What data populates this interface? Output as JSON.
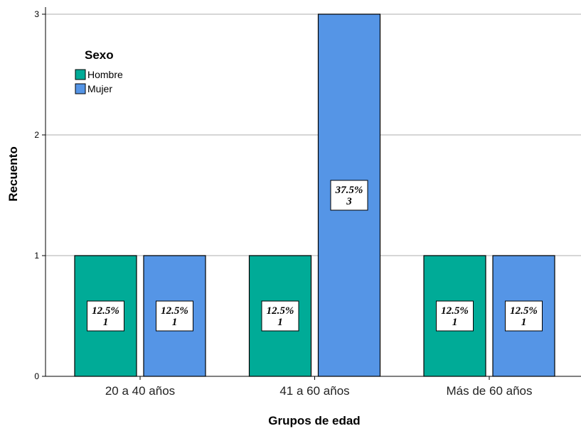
{
  "chart_data": {
    "type": "bar",
    "xlabel": "Grupos de edad",
    "ylabel": "Recuento",
    "categories": [
      "20 a 40 años",
      "41 a 60 años",
      "Más de 60 años"
    ],
    "ylim": [
      0,
      3
    ],
    "yticks": [
      "0",
      "1",
      "2",
      "3"
    ],
    "grid": true,
    "legend": {
      "title": "Sexo",
      "placement": "top-left"
    },
    "series": [
      {
        "name": "Hombre",
        "color": "#00ab97",
        "values": [
          1,
          1,
          1
        ],
        "labels": [
          [
            "12.5%",
            "1"
          ],
          [
            "12.5%",
            "1"
          ],
          [
            "12.5%",
            "1"
          ]
        ]
      },
      {
        "name": "Mujer",
        "color": "#5595e6",
        "values": [
          1,
          3,
          1
        ],
        "labels": [
          [
            "12.5%",
            "1"
          ],
          [
            "37.5%",
            "3"
          ],
          [
            "12.5%",
            "1"
          ]
        ]
      }
    ]
  }
}
